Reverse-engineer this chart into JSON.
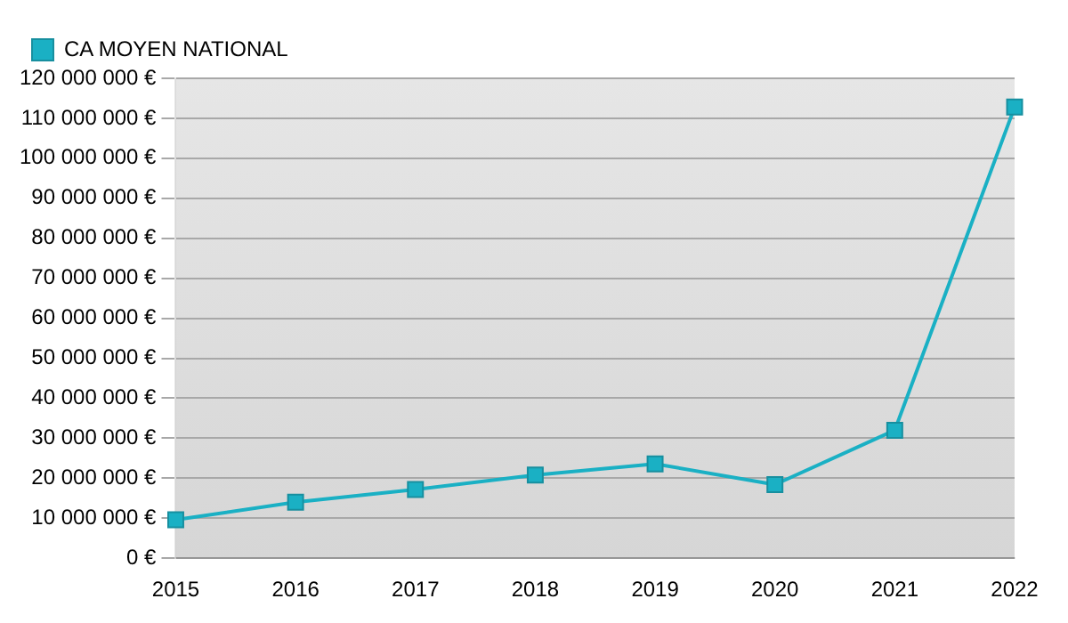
{
  "chart_data": {
    "type": "line",
    "categories": [
      "2015",
      "2016",
      "2017",
      "2018",
      "2019",
      "2020",
      "2021",
      "2022"
    ],
    "series": [
      {
        "name": "CA MOYEN NATIONAL",
        "color": "#1ab0c4",
        "values": [
          9600000,
          14000000,
          17200000,
          20800000,
          23600000,
          18400000,
          32000000,
          112800000
        ]
      }
    ],
    "ylim": [
      0,
      120000000
    ],
    "yticks": [
      {
        "value": 0,
        "label": "0 €"
      },
      {
        "value": 10000000,
        "label": "10 000 000 €"
      },
      {
        "value": 20000000,
        "label": "20 000 000 €"
      },
      {
        "value": 30000000,
        "label": "30 000 000 €"
      },
      {
        "value": 40000000,
        "label": "40 000 000 €"
      },
      {
        "value": 50000000,
        "label": "50 000 000 €"
      },
      {
        "value": 60000000,
        "label": "60 000 000 €"
      },
      {
        "value": 70000000,
        "label": "70 000 000 €"
      },
      {
        "value": 80000000,
        "label": "80 000 000 €"
      },
      {
        "value": 90000000,
        "label": "90 000 000 €"
      },
      {
        "value": 100000000,
        "label": "100 000 000 €"
      },
      {
        "value": 110000000,
        "label": "110 000 000 €"
      },
      {
        "value": 120000000,
        "label": "120 000 000 €"
      }
    ],
    "grid": "y",
    "legend": "top left",
    "marker": "square",
    "line_style": "solid"
  }
}
